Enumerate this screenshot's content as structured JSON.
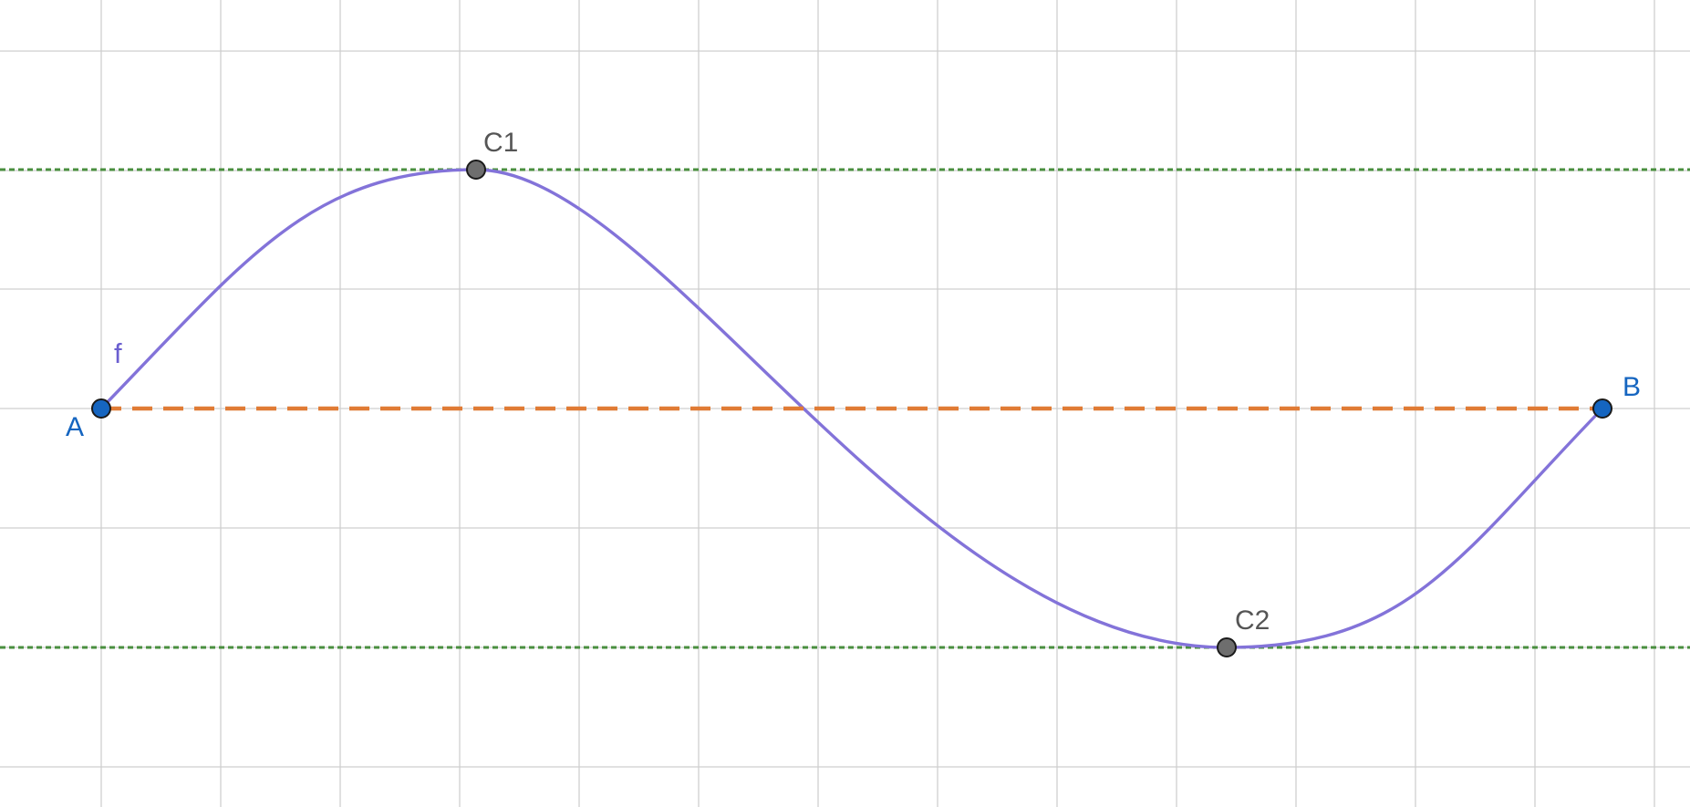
{
  "figure": {
    "function_label": "f",
    "colors": {
      "background": "#ffffff",
      "grid": "#cfcfcf",
      "curve": "#8373d9",
      "function_label": "#6b5fd0",
      "segment": "#e07b35",
      "extremum_lines": "#4a8f3f",
      "free_point_fill": "#1565c0",
      "free_point_label": "#1565c0",
      "dependent_point_fill": "#6e6e6e",
      "dependent_point_label": "#555555"
    },
    "points": [
      {
        "id": "A",
        "label": "A",
        "kind": "free"
      },
      {
        "id": "B",
        "label": "B",
        "kind": "free"
      },
      {
        "id": "C1",
        "label": "C1",
        "kind": "dependent"
      },
      {
        "id": "C2",
        "label": "C2",
        "kind": "dependent"
      }
    ],
    "segment": {
      "from": "A",
      "to": "B",
      "style": "dashed"
    },
    "extremum_lines": [
      {
        "through": "C1",
        "style": "dotted"
      },
      {
        "through": "C2",
        "style": "dotted"
      }
    ]
  }
}
